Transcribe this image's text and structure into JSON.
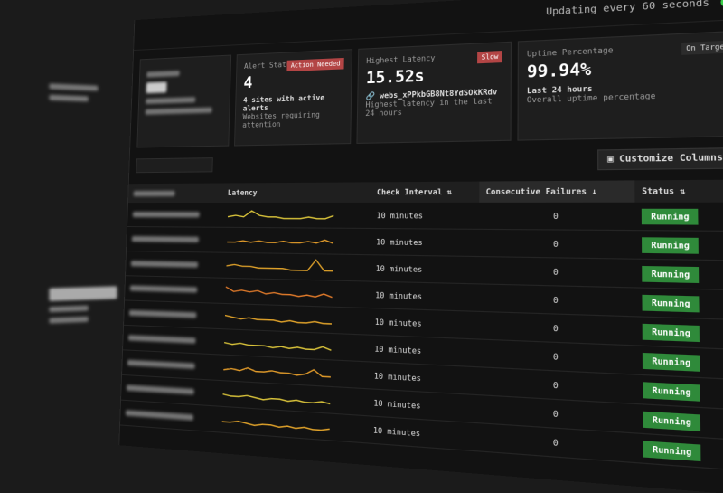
{
  "header": {
    "update_text": "Updating every 60 seconds",
    "status_color": "#3bd14a"
  },
  "cards": {
    "alert": {
      "title": "Alert Status",
      "badge": "Action Needed",
      "value": "4",
      "line1": "4 sites with active alerts",
      "line2": "Websites requiring attention"
    },
    "latency": {
      "title": "Highest Latency",
      "badge": "Slow",
      "value": "15.52s",
      "site": "webs_xPPkbGB8Nt8YdSOkKRdv",
      "desc": "Highest latency in the last 24 hours"
    },
    "uptime": {
      "title": "Uptime Percentage",
      "badge": "On Target",
      "value": "99.94%",
      "line1": "Last 24 hours",
      "line2": "Overall uptime percentage"
    }
  },
  "toolbar": {
    "customize": "Customize Columns"
  },
  "table": {
    "headers": {
      "latency": "Latency",
      "interval": "Check Interval",
      "failures": "Consecutive Failures",
      "status": "Status"
    },
    "rows": [
      {
        "interval": "10 minutes",
        "failures": "0",
        "status": "Running",
        "color": "#d8c23a",
        "latency": [
          3,
          4,
          3,
          7,
          4,
          3,
          3,
          2,
          2,
          2,
          3,
          2,
          2,
          4
        ]
      },
      {
        "interval": "10 minutes",
        "failures": "0",
        "status": "Running",
        "color": "#e09a2a",
        "latency": [
          3,
          3,
          4,
          3,
          4,
          3,
          3,
          4,
          3,
          3,
          4,
          3,
          5,
          3
        ]
      },
      {
        "interval": "10 minutes",
        "failures": "0",
        "status": "Running",
        "color": "#e0a22a",
        "latency": [
          4,
          5,
          4,
          4,
          3,
          3,
          3,
          3,
          2,
          2,
          2,
          9,
          2,
          2
        ]
      },
      {
        "interval": "10 minutes",
        "failures": "0",
        "status": "Running",
        "color": "#e07a2a",
        "latency": [
          7,
          4,
          5,
          4,
          5,
          3,
          4,
          3,
          3,
          2,
          3,
          2,
          4,
          2
        ]
      },
      {
        "interval": "10 minutes",
        "failures": "0",
        "status": "Running",
        "color": "#e0a22a",
        "latency": [
          5,
          4,
          3,
          4,
          3,
          3,
          3,
          2,
          3,
          2,
          2,
          3,
          2,
          2
        ]
      },
      {
        "interval": "10 minutes",
        "failures": "0",
        "status": "Running",
        "color": "#d8c23a",
        "latency": [
          4,
          3,
          4,
          3,
          3,
          3,
          2,
          3,
          2,
          3,
          2,
          2,
          4,
          2
        ]
      },
      {
        "interval": "10 minutes",
        "failures": "0",
        "status": "Running",
        "color": "#e09a2a",
        "latency": [
          3,
          4,
          3,
          5,
          3,
          3,
          4,
          3,
          3,
          2,
          3,
          6,
          2,
          2
        ]
      },
      {
        "interval": "10 minutes",
        "failures": "0",
        "status": "Running",
        "color": "#d8c23a",
        "latency": [
          4,
          3,
          3,
          4,
          3,
          2,
          3,
          3,
          2,
          3,
          2,
          2,
          3,
          2
        ]
      },
      {
        "interval": "10 minutes",
        "failures": "0",
        "status": "Running",
        "color": "#e0a22a",
        "latency": [
          3,
          3,
          4,
          3,
          2,
          3,
          3,
          2,
          3,
          2,
          3,
          2,
          2,
          3
        ]
      }
    ]
  }
}
